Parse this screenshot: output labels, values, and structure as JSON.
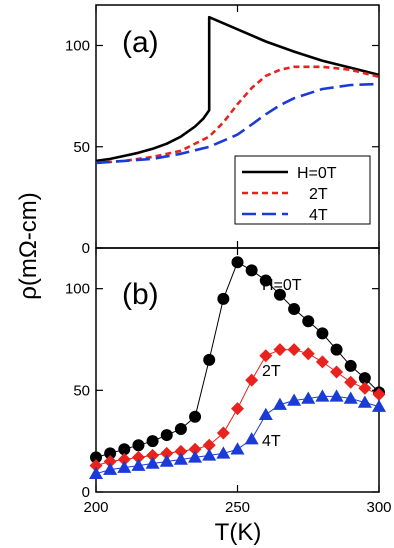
{
  "chart_data": [
    {
      "type": "line",
      "panel_label": "(a)",
      "xlabel": "T(K)",
      "ylabel": "ρ(mΩ-cm)",
      "xlim": [
        200,
        300
      ],
      "ylim": [
        0,
        120
      ],
      "x_ticks": [
        "200",
        "250",
        "300"
      ],
      "y_ticks": [
        "0",
        "50",
        "100"
      ],
      "grid": false,
      "legend_position": "bottom-right",
      "legend": [
        "H=0T",
        "2T",
        "4T"
      ],
      "colors": {
        "H=0T": "#000000",
        "2T": "#e8221d",
        "4T": "#1a3bd6"
      },
      "series": [
        {
          "name": "H=0T",
          "style": "solid",
          "x": [
            200,
            205,
            210,
            215,
            220,
            225,
            230,
            235,
            238,
            240,
            240,
            250,
            260,
            270,
            280,
            290,
            300
          ],
          "y": [
            43,
            44,
            45.5,
            47,
            49,
            51.5,
            55,
            60,
            64,
            68,
            114,
            108,
            102,
            97,
            92.5,
            89,
            85.5
          ]
        },
        {
          "name": "2T",
          "style": "dashed",
          "x": [
            200,
            210,
            220,
            230,
            240,
            245,
            250,
            255,
            260,
            265,
            270,
            280,
            290,
            300
          ],
          "y": [
            42,
            43,
            45,
            48,
            55,
            62,
            71,
            79,
            85,
            88,
            89.5,
            89.5,
            88,
            84.5
          ]
        },
        {
          "name": "4T",
          "style": "long-dashed",
          "x": [
            200,
            210,
            220,
            230,
            240,
            250,
            255,
            260,
            265,
            270,
            280,
            290,
            300
          ],
          "y": [
            42,
            43,
            44,
            46.5,
            50,
            56,
            61,
            66,
            70.5,
            74,
            78.5,
            80.5,
            81
          ]
        }
      ]
    },
    {
      "type": "line",
      "panel_label": "(b)",
      "xlabel": "T(K)",
      "ylabel": "ρ(mΩ-cm)",
      "xlim": [
        200,
        300
      ],
      "ylim": [
        0,
        120
      ],
      "x_ticks": [
        "200",
        "250",
        "300"
      ],
      "y_ticks": [
        "0",
        "50",
        "100"
      ],
      "grid": false,
      "colors": {
        "H=0T": "#000000",
        "2T": "#e8221d",
        "4T": "#1a3bd6"
      },
      "series": [
        {
          "name": "H=0T",
          "marker": "circle",
          "x": [
            200,
            205,
            210,
            215,
            220,
            225,
            230,
            235,
            240,
            245,
            250,
            255,
            260,
            265,
            270,
            275,
            280,
            285,
            290,
            295,
            300
          ],
          "y": [
            17,
            19,
            21,
            23,
            25,
            28,
            31,
            37,
            65,
            95,
            113,
            109,
            104,
            97,
            90,
            84,
            78,
            70,
            62,
            56,
            49
          ]
        },
        {
          "name": "2T",
          "marker": "diamond",
          "x": [
            200,
            205,
            210,
            215,
            220,
            225,
            230,
            235,
            240,
            245,
            250,
            255,
            260,
            265,
            270,
            275,
            280,
            285,
            290,
            295,
            300
          ],
          "y": [
            13,
            15,
            16,
            17,
            18,
            19,
            20,
            21,
            23,
            29,
            41,
            55,
            67,
            70,
            70,
            68,
            64,
            59,
            54,
            51,
            48
          ]
        },
        {
          "name": "4T",
          "marker": "triangle",
          "x": [
            200,
            205,
            210,
            215,
            220,
            225,
            230,
            235,
            240,
            245,
            250,
            255,
            260,
            265,
            270,
            275,
            280,
            285,
            290,
            295,
            300
          ],
          "y": [
            9,
            11,
            12,
            13,
            14,
            15,
            16,
            17,
            18,
            19,
            21,
            26,
            38,
            43,
            45,
            46,
            47,
            47,
            46,
            44,
            42
          ]
        }
      ]
    }
  ]
}
